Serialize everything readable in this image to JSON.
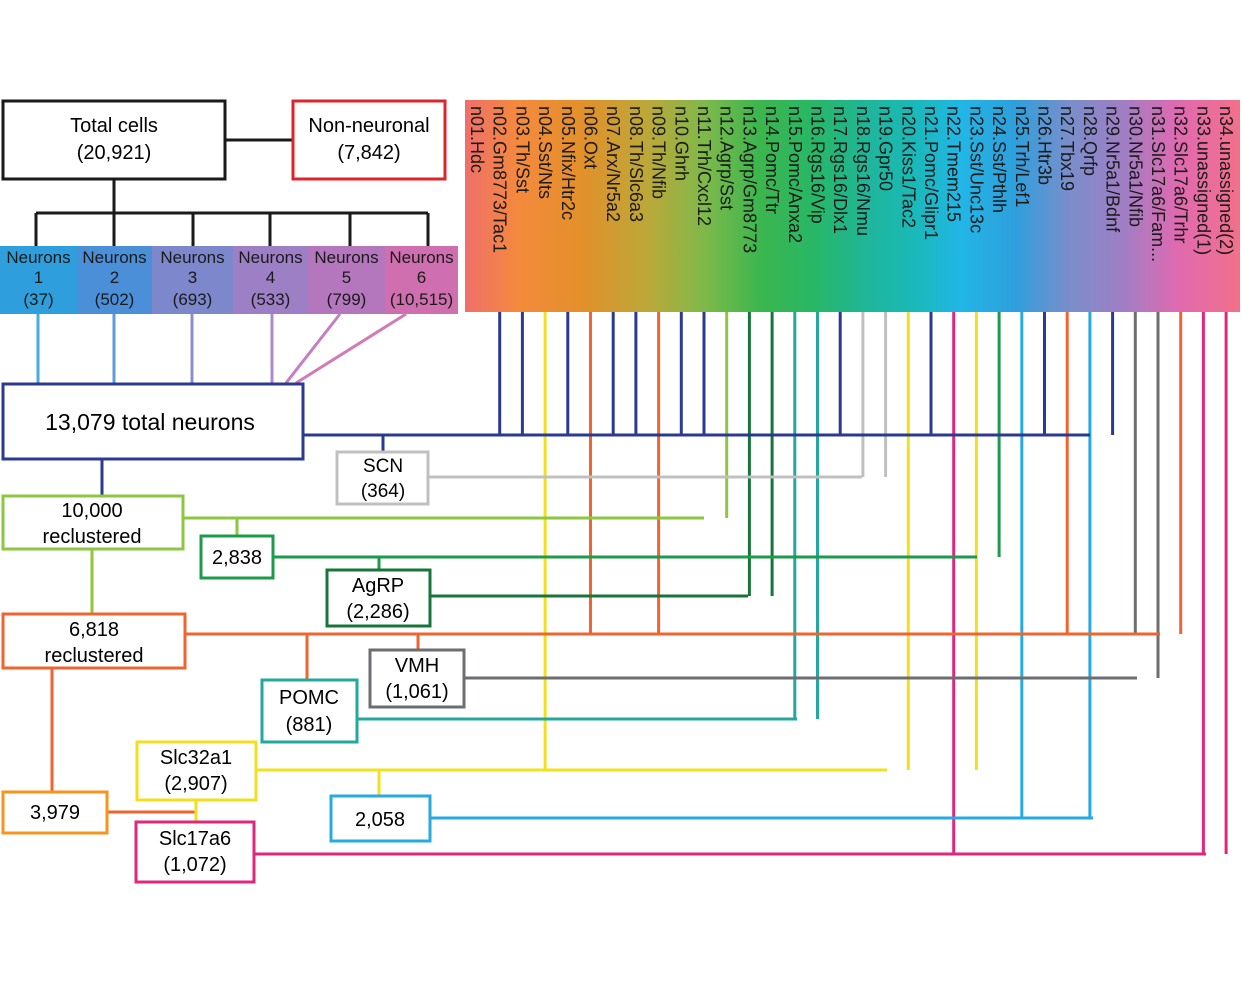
{
  "top": {
    "total": {
      "label": "Total cells",
      "count": "(20,921)"
    },
    "nonneuronal": {
      "label": "Non-neuronal",
      "count": "(7,842)"
    }
  },
  "neuron_groups": [
    {
      "label": "Neurons",
      "num": "1",
      "count": "(37)",
      "color": "#2e9fdc"
    },
    {
      "label": "Neurons",
      "num": "2",
      "count": "(502)",
      "color": "#4a8fd8"
    },
    {
      "label": "Neurons",
      "num": "3",
      "count": "(693)",
      "color": "#7c87cc"
    },
    {
      "label": "Neurons",
      "num": "4",
      "count": "(533)",
      "color": "#9d7fc6"
    },
    {
      "label": "Neurons",
      "num": "5",
      "count": "(799)",
      "color": "#b477be"
    },
    {
      "label": "Neurons",
      "num": "6",
      "count": "(10,515)",
      "color": "#cf6fb0"
    }
  ],
  "clusters": [
    "n01.Hdc",
    "n02.Gm8773/Tac1",
    "n03.Th/Sst",
    "n04.Sst/Nts",
    "n05.Nfix/Htr2c",
    "n06.Oxt",
    "n07.Arx/Nr5a2",
    "n08.Th/Slc6a3",
    "n09.Th/Nfib",
    "n10.Ghrh",
    "n11.Trh/Cxcl12",
    "n12.Agrp/Sst",
    "n13.Agrp/Gm8773",
    "n14.Pomc/Ttr",
    "n15.Pomc/Anxa2",
    "n16.Rgs16/Vip",
    "n17.Rgs16/Dlx1",
    "n18.Rgs16/Nmu",
    "n19.Gpr50",
    "n20.Kiss1/Tac2",
    "n21.Pomc/Glipr1",
    "n22.Tmem215",
    "n23.Sst/Unc13c",
    "n24.Sst/Pthlh",
    "n25.Trh/Lef1",
    "n26.Htr3b",
    "n27.Tbx19",
    "n28.Qrfp",
    "n29.Nr5a1/Bdnf",
    "n30.Nr5a1/Nfib",
    "n31.Slc17a6/Fam...",
    "n32.Slc17a6/Trhr",
    "n33.unassigned(1)",
    "n34.unassigned(2)"
  ],
  "boxes": {
    "total_neurons": {
      "label": "13,079 total neurons"
    },
    "scn": {
      "label": "SCN",
      "count": "(364)"
    },
    "reclustered_10000": {
      "label": "10,000",
      "sub": "reclustered"
    },
    "c2838": {
      "label": "2,838"
    },
    "agrp": {
      "label": "AgRP",
      "count": "(2,286)"
    },
    "reclustered_6818": {
      "label": "6,818",
      "sub": "reclustered"
    },
    "vmh": {
      "label": "VMH",
      "count": "(1,061)"
    },
    "pomc": {
      "label": "POMC",
      "count": "(881)"
    },
    "slc32a1": {
      "label": "Slc32a1",
      "count": "(2,907)"
    },
    "c3979": {
      "label": "3,979"
    },
    "c2058": {
      "label": "2,058"
    },
    "slc17a6": {
      "label": "Slc17a6",
      "count": "(1,072)"
    }
  },
  "colors": {
    "navy": "#2b3990",
    "black": "#1a1a1a",
    "red_box": "#e0232b",
    "scn_gray": "#c0c0c0",
    "lime": "#8dc63f",
    "green": "#1e9a4b",
    "dark_green": "#17753a",
    "orange": "#f06430",
    "teal": "#22a89c",
    "dark_gray": "#6d6e71",
    "yellow": "#f2e01e",
    "light_orange": "#f7941d",
    "blue": "#27aae1",
    "magenta": "#e0277c"
  }
}
